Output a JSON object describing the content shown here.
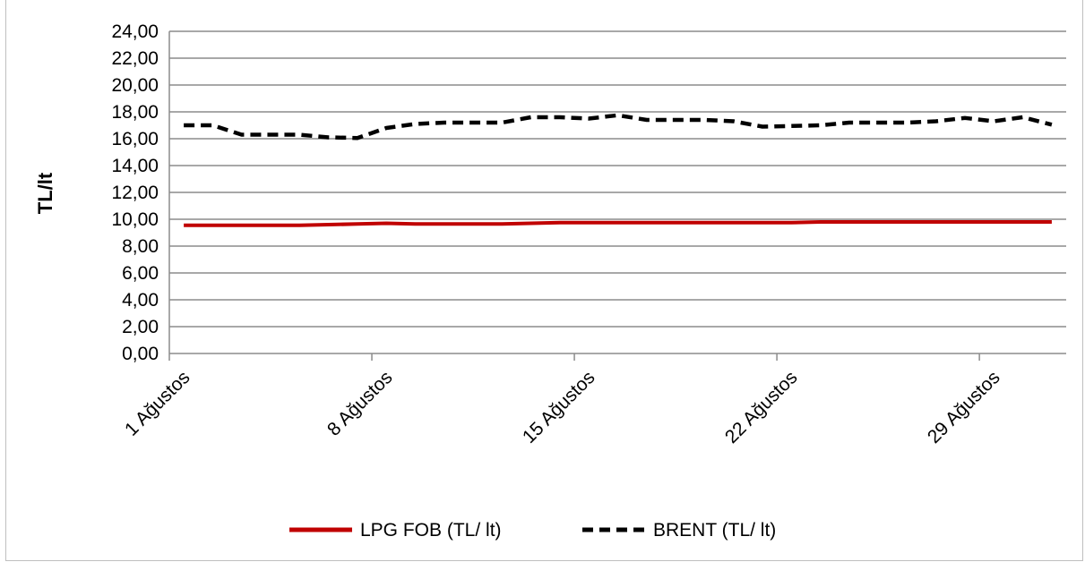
{
  "chart_data": {
    "type": "line",
    "title": "",
    "xlabel": "",
    "ylabel": "TL/lt",
    "ylim": [
      0,
      24
    ],
    "ytick_step": 2,
    "ytick_labels": [
      "0,00",
      "2,00",
      "4,00",
      "6,00",
      "8,00",
      "10,00",
      "12,00",
      "14,00",
      "16,00",
      "18,00",
      "20,00",
      "22,00",
      "24,00"
    ],
    "x_days": [
      1,
      2,
      3,
      4,
      5,
      6,
      7,
      8,
      9,
      10,
      11,
      12,
      13,
      14,
      15,
      16,
      17,
      18,
      19,
      20,
      21,
      22,
      23,
      24,
      25,
      26,
      27,
      28,
      29,
      30,
      31
    ],
    "x_range": [
      0.5,
      31.5
    ],
    "xtick_labels": [
      {
        "day": 1,
        "label": "1 Ağustos"
      },
      {
        "day": 8,
        "label": "8 Ağustos"
      },
      {
        "day": 15,
        "label": "15 Ağustos"
      },
      {
        "day": 22,
        "label": "22 Ağustos"
      },
      {
        "day": 29,
        "label": "29 Ağustos"
      }
    ],
    "grid": "horizontal",
    "legend_position": "bottom",
    "series": [
      {
        "name": "LPG FOB (TL/ lt)",
        "color": "#c00000",
        "dash": "solid",
        "values": [
          9.55,
          9.55,
          9.55,
          9.55,
          9.55,
          9.6,
          9.65,
          9.7,
          9.65,
          9.65,
          9.65,
          9.65,
          9.7,
          9.75,
          9.75,
          9.75,
          9.75,
          9.75,
          9.75,
          9.75,
          9.75,
          9.75,
          9.8,
          9.8,
          9.8,
          9.8,
          9.8,
          9.8,
          9.8,
          9.8,
          9.8
        ]
      },
      {
        "name": "BRENT (TL/ lt)",
        "color": "#000000",
        "dash": "dashed",
        "values": [
          17.0,
          17.0,
          16.3,
          16.3,
          16.3,
          16.1,
          16.05,
          16.8,
          17.1,
          17.2,
          17.2,
          17.2,
          17.6,
          17.6,
          17.5,
          17.75,
          17.4,
          17.4,
          17.4,
          17.3,
          16.9,
          16.95,
          17.0,
          17.2,
          17.2,
          17.2,
          17.3,
          17.55,
          17.3,
          17.6,
          17.05
        ]
      }
    ]
  }
}
